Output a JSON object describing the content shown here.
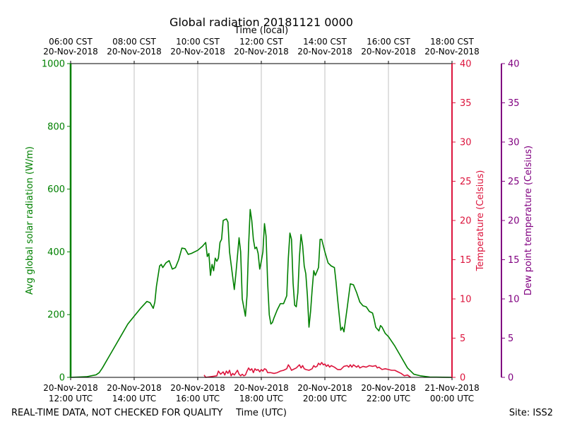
{
  "chart_data": {
    "type": "line",
    "title": "Global radiation 20181121 0000",
    "top_xlabel": "Time (local)",
    "bottom_xlabel": "Time (UTC)",
    "footer_left": "REAL-TIME DATA, NOT CHECKED FOR QUALITY",
    "footer_right": "Site: ISS2",
    "x_unit": "hours since 20-Nov-2018 12:00 UTC",
    "xlim": [
      0,
      12
    ],
    "top_ticks": [
      {
        "x": 0,
        "l1": "06:00 CST",
        "l2": "20-Nov-2018"
      },
      {
        "x": 2,
        "l1": "08:00 CST",
        "l2": "20-Nov-2018"
      },
      {
        "x": 4,
        "l1": "10:00 CST",
        "l2": "20-Nov-2018"
      },
      {
        "x": 6,
        "l1": "12:00 CST",
        "l2": "20-Nov-2018"
      },
      {
        "x": 8,
        "l1": "14:00 CST",
        "l2": "20-Nov-2018"
      },
      {
        "x": 10,
        "l1": "16:00 CST",
        "l2": "20-Nov-2018"
      },
      {
        "x": 12,
        "l1": "18:00 CST",
        "l2": "20-Nov-2018"
      }
    ],
    "bottom_ticks": [
      {
        "x": 0,
        "l1": "20-Nov-2018",
        "l2": "12:00 UTC"
      },
      {
        "x": 2,
        "l1": "20-Nov-2018",
        "l2": "14:00 UTC"
      },
      {
        "x": 4,
        "l1": "20-Nov-2018",
        "l2": "16:00 UTC"
      },
      {
        "x": 6,
        "l1": "20-Nov-2018",
        "l2": "18:00 UTC"
      },
      {
        "x": 8,
        "l1": "20-Nov-2018",
        "l2": "20:00 UTC"
      },
      {
        "x": 10,
        "l1": "20-Nov-2018",
        "l2": "22:00 UTC"
      },
      {
        "x": 12,
        "l1": "21-Nov-2018",
        "l2": "00:00 UTC"
      }
    ],
    "axes": {
      "radiation": {
        "label": "Avg global solar radiation (W/m)",
        "ylim": [
          0,
          1000
        ],
        "ticks": [
          0,
          200,
          400,
          600,
          800,
          1000
        ],
        "color": "#008000"
      },
      "temperature": {
        "label": "Temperature (Celsius)",
        "ylim": [
          0,
          40
        ],
        "ticks": [
          0,
          5,
          10,
          15,
          20,
          25,
          30,
          35,
          40
        ],
        "color": "#dc143c"
      },
      "dewpoint": {
        "label": "Dew point temperature (Celsius)",
        "ylim": [
          0,
          40
        ],
        "ticks": [
          0,
          5,
          10,
          15,
          20,
          25,
          30,
          35,
          40
        ],
        "color": "#800080"
      }
    },
    "grid": true,
    "series": [
      {
        "name": "Avg global solar radiation",
        "axis": "radiation",
        "color": "#008000",
        "points": [
          [
            0,
            0
          ],
          [
            0.5,
            2
          ],
          [
            0.8,
            8
          ],
          [
            0.9,
            15
          ],
          [
            1.0,
            30
          ],
          [
            1.2,
            65
          ],
          [
            1.4,
            100
          ],
          [
            1.6,
            135
          ],
          [
            1.8,
            170
          ],
          [
            2.0,
            195
          ],
          [
            2.2,
            220
          ],
          [
            2.4,
            242
          ],
          [
            2.5,
            238
          ],
          [
            2.6,
            220
          ],
          [
            2.65,
            240
          ],
          [
            2.7,
            290
          ],
          [
            2.8,
            355
          ],
          [
            2.85,
            360
          ],
          [
            2.9,
            350
          ],
          [
            3.0,
            365
          ],
          [
            3.1,
            372
          ],
          [
            3.2,
            345
          ],
          [
            3.3,
            350
          ],
          [
            3.4,
            375
          ],
          [
            3.5,
            412
          ],
          [
            3.6,
            410
          ],
          [
            3.7,
            392
          ],
          [
            3.8,
            395
          ],
          [
            4.0,
            405
          ],
          [
            4.15,
            418
          ],
          [
            4.25,
            430
          ],
          [
            4.3,
            385
          ],
          [
            4.35,
            395
          ],
          [
            4.4,
            325
          ],
          [
            4.45,
            360
          ],
          [
            4.5,
            340
          ],
          [
            4.55,
            380
          ],
          [
            4.6,
            370
          ],
          [
            4.65,
            380
          ],
          [
            4.7,
            430
          ],
          [
            4.75,
            440
          ],
          [
            4.8,
            500
          ],
          [
            4.9,
            505
          ],
          [
            4.95,
            495
          ],
          [
            5.0,
            400
          ],
          [
            5.1,
            320
          ],
          [
            5.15,
            280
          ],
          [
            5.2,
            330
          ],
          [
            5.3,
            445
          ],
          [
            5.35,
            400
          ],
          [
            5.4,
            250
          ],
          [
            5.5,
            195
          ],
          [
            5.55,
            260
          ],
          [
            5.6,
            420
          ],
          [
            5.65,
            535
          ],
          [
            5.7,
            500
          ],
          [
            5.75,
            440
          ],
          [
            5.8,
            410
          ],
          [
            5.85,
            415
          ],
          [
            5.9,
            395
          ],
          [
            5.95,
            345
          ],
          [
            6.0,
            370
          ],
          [
            6.05,
            400
          ],
          [
            6.1,
            490
          ],
          [
            6.15,
            450
          ],
          [
            6.2,
            300
          ],
          [
            6.25,
            200
          ],
          [
            6.3,
            170
          ],
          [
            6.35,
            175
          ],
          [
            6.4,
            190
          ],
          [
            6.5,
            215
          ],
          [
            6.6,
            235
          ],
          [
            6.7,
            235
          ],
          [
            6.8,
            260
          ],
          [
            6.85,
            380
          ],
          [
            6.9,
            460
          ],
          [
            6.95,
            440
          ],
          [
            7.0,
            300
          ],
          [
            7.05,
            230
          ],
          [
            7.1,
            225
          ],
          [
            7.15,
            270
          ],
          [
            7.2,
            385
          ],
          [
            7.25,
            455
          ],
          [
            7.3,
            420
          ],
          [
            7.35,
            355
          ],
          [
            7.4,
            330
          ],
          [
            7.45,
            260
          ],
          [
            7.5,
            160
          ],
          [
            7.55,
            210
          ],
          [
            7.6,
            280
          ],
          [
            7.65,
            340
          ],
          [
            7.7,
            325
          ],
          [
            7.8,
            350
          ],
          [
            7.85,
            440
          ],
          [
            7.9,
            440
          ],
          [
            8.0,
            400
          ],
          [
            8.1,
            365
          ],
          [
            8.2,
            355
          ],
          [
            8.3,
            350
          ],
          [
            8.35,
            305
          ],
          [
            8.4,
            250
          ],
          [
            8.45,
            200
          ],
          [
            8.5,
            150
          ],
          [
            8.55,
            160
          ],
          [
            8.6,
            145
          ],
          [
            8.7,
            220
          ],
          [
            8.8,
            298
          ],
          [
            8.9,
            295
          ],
          [
            9.0,
            270
          ],
          [
            9.1,
            240
          ],
          [
            9.2,
            228
          ],
          [
            9.3,
            225
          ],
          [
            9.4,
            210
          ],
          [
            9.5,
            205
          ],
          [
            9.55,
            185
          ],
          [
            9.6,
            160
          ],
          [
            9.7,
            148
          ],
          [
            9.75,
            165
          ],
          [
            9.8,
            160
          ],
          [
            9.9,
            140
          ],
          [
            10.0,
            130
          ],
          [
            10.2,
            100
          ],
          [
            10.4,
            65
          ],
          [
            10.6,
            30
          ],
          [
            10.8,
            10
          ],
          [
            11.0,
            5
          ],
          [
            11.3,
            1
          ],
          [
            12.0,
            0
          ]
        ]
      },
      {
        "name": "Temperature",
        "axis": "temperature",
        "color": "#dc143c",
        "points": [
          [
            4.2,
            0.3
          ],
          [
            4.25,
            0.0
          ],
          [
            4.6,
            0.2
          ],
          [
            4.65,
            0.8
          ],
          [
            4.72,
            0.4
          ],
          [
            4.8,
            0.7
          ],
          [
            4.85,
            0.3
          ],
          [
            4.9,
            0.8
          ],
          [
            4.95,
            0.5
          ],
          [
            5.0,
            0.9
          ],
          [
            5.05,
            0.2
          ],
          [
            5.1,
            0.5
          ],
          [
            5.15,
            0.3
          ],
          [
            5.2,
            0.6
          ],
          [
            5.25,
            0.9
          ],
          [
            5.3,
            0.4
          ],
          [
            5.35,
            0.2
          ],
          [
            5.4,
            0.4
          ],
          [
            5.45,
            0.2
          ],
          [
            5.5,
            0.3
          ],
          [
            5.55,
            0.8
          ],
          [
            5.6,
            1.2
          ],
          [
            5.65,
            0.9
          ],
          [
            5.7,
            1.1
          ],
          [
            5.75,
            0.6
          ],
          [
            5.8,
            1.1
          ],
          [
            5.85,
            0.9
          ],
          [
            5.9,
            1.0
          ],
          [
            5.95,
            0.7
          ],
          [
            6.0,
            1.0
          ],
          [
            6.05,
            0.8
          ],
          [
            6.1,
            1.1
          ],
          [
            6.15,
            1.0
          ],
          [
            6.2,
            0.6
          ],
          [
            6.3,
            0.6
          ],
          [
            6.4,
            0.5
          ],
          [
            6.5,
            0.6
          ],
          [
            6.6,
            0.8
          ],
          [
            6.7,
            0.9
          ],
          [
            6.8,
            1.1
          ],
          [
            6.85,
            1.6
          ],
          [
            6.9,
            1.3
          ],
          [
            6.95,
            0.9
          ],
          [
            7.0,
            1.0
          ],
          [
            7.1,
            1.2
          ],
          [
            7.2,
            1.6
          ],
          [
            7.25,
            1.2
          ],
          [
            7.3,
            1.5
          ],
          [
            7.35,
            1.1
          ],
          [
            7.4,
            1.0
          ],
          [
            7.5,
            0.9
          ],
          [
            7.6,
            1.1
          ],
          [
            7.65,
            1.5
          ],
          [
            7.7,
            1.3
          ],
          [
            7.75,
            1.4
          ],
          [
            7.8,
            1.8
          ],
          [
            7.85,
            1.6
          ],
          [
            7.9,
            1.9
          ],
          [
            7.95,
            1.6
          ],
          [
            8.0,
            1.7
          ],
          [
            8.05,
            1.4
          ],
          [
            8.1,
            1.6
          ],
          [
            8.15,
            1.3
          ],
          [
            8.2,
            1.5
          ],
          [
            8.3,
            1.3
          ],
          [
            8.4,
            1.0
          ],
          [
            8.5,
            1.0
          ],
          [
            8.6,
            1.4
          ],
          [
            8.7,
            1.5
          ],
          [
            8.75,
            1.3
          ],
          [
            8.8,
            1.6
          ],
          [
            8.85,
            1.3
          ],
          [
            8.9,
            1.6
          ],
          [
            9.0,
            1.3
          ],
          [
            9.05,
            1.5
          ],
          [
            9.1,
            1.2
          ],
          [
            9.2,
            1.4
          ],
          [
            9.3,
            1.3
          ],
          [
            9.4,
            1.5
          ],
          [
            9.5,
            1.4
          ],
          [
            9.6,
            1.5
          ],
          [
            9.65,
            1.2
          ],
          [
            9.7,
            1.3
          ],
          [
            9.8,
            1.0
          ],
          [
            9.9,
            1.1
          ],
          [
            10.0,
            1.0
          ],
          [
            10.1,
            0.9
          ],
          [
            10.2,
            0.9
          ],
          [
            10.3,
            0.7
          ],
          [
            10.4,
            0.5
          ],
          [
            10.5,
            0.2
          ],
          [
            10.6,
            0.3
          ],
          [
            10.7,
            0.0
          ]
        ]
      }
    ]
  }
}
